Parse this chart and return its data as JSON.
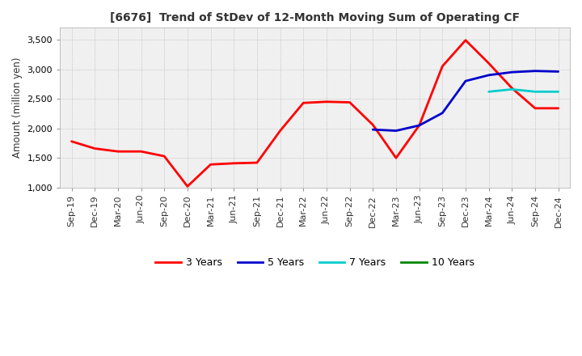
{
  "title": "[6676]  Trend of StDev of 12-Month Moving Sum of Operating CF",
  "ylabel": "Amount (million yen)",
  "ylim": [
    1000,
    3700
  ],
  "yticks": [
    1000,
    1500,
    2000,
    2500,
    3000,
    3500
  ],
  "x_labels": [
    "Sep-19",
    "Dec-19",
    "Mar-20",
    "Jun-20",
    "Sep-20",
    "Dec-20",
    "Mar-21",
    "Jun-21",
    "Sep-21",
    "Dec-21",
    "Mar-22",
    "Jun-22",
    "Sep-22",
    "Dec-22",
    "Mar-23",
    "Jun-23",
    "Sep-23",
    "Dec-23",
    "Mar-24",
    "Jun-24",
    "Sep-24",
    "Dec-24"
  ],
  "series_3y": [
    1780,
    1660,
    1610,
    1610,
    1530,
    1020,
    1390,
    1410,
    1420,
    1960,
    2430,
    2450,
    2440,
    2060,
    1500,
    2050,
    3050,
    3490,
    3100,
    2680,
    2340,
    2340
  ],
  "series_5y": [
    null,
    null,
    null,
    null,
    null,
    null,
    null,
    null,
    null,
    null,
    null,
    null,
    null,
    1980,
    1960,
    2050,
    2260,
    2800,
    2900,
    2950,
    2970,
    2960
  ],
  "series_7y": [
    null,
    null,
    null,
    null,
    null,
    null,
    null,
    null,
    null,
    null,
    null,
    null,
    null,
    null,
    null,
    null,
    null,
    null,
    2620,
    2660,
    2620,
    2620
  ],
  "series_10y": [
    null,
    null,
    null,
    null,
    null,
    null,
    null,
    null,
    null,
    null,
    null,
    null,
    null,
    null,
    null,
    null,
    null,
    null,
    null,
    null,
    null,
    null
  ],
  "color_3y": "#FF0000",
  "color_5y": "#0000CC",
  "color_7y": "#00CCCC",
  "color_10y": "#008800",
  "linewidth": 2.0,
  "background_color": "#FFFFFF",
  "plot_bg_color": "#F0F0F0",
  "grid_color": "#AAAAAA",
  "legend_labels": [
    "3 Years",
    "5 Years",
    "7 Years",
    "10 Years"
  ],
  "legend_colors": [
    "#FF0000",
    "#0000CC",
    "#00CCCC",
    "#008800"
  ]
}
